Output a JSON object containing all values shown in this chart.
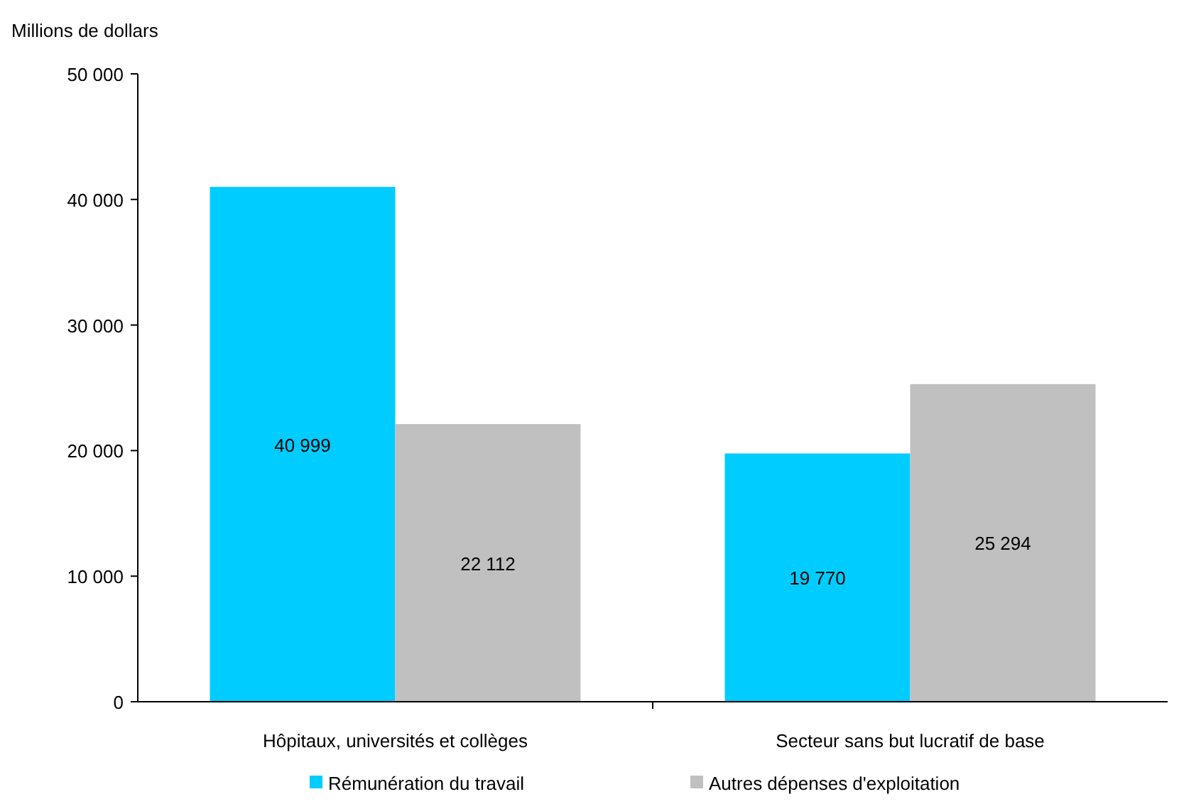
{
  "chart_data": {
    "type": "bar",
    "ylabel": "Millions de dollars",
    "categories": [
      "Hôpitaux, universités et collèges",
      "Secteur sans but lucratif de base"
    ],
    "series": [
      {
        "name": "Rémunération du travail",
        "color": "#00ccff",
        "values": [
          40999,
          19770
        ],
        "value_labels": [
          "40 999",
          "19 770"
        ]
      },
      {
        "name": "Autres dépenses d'exploitation",
        "color": "#c0c0c0",
        "values": [
          22112,
          25294
        ],
        "value_labels": [
          "22 112",
          "25 294"
        ]
      }
    ],
    "ylim": [
      0,
      50000
    ],
    "yticks": [
      {
        "value": 0,
        "label": "0"
      },
      {
        "value": 10000,
        "label": "10 000"
      },
      {
        "value": 20000,
        "label": "20 000"
      },
      {
        "value": 30000,
        "label": "30 000"
      },
      {
        "value": 40000,
        "label": "40 000"
      },
      {
        "value": 50000,
        "label": "50 000"
      }
    ],
    "grid": false,
    "legend": "bottom"
  }
}
